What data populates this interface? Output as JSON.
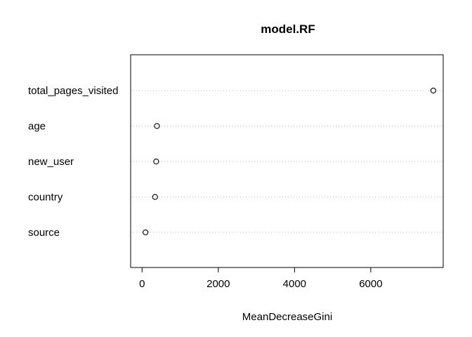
{
  "chart_data": {
    "type": "scatter",
    "subtype": "dotchart",
    "title": "model.RF",
    "xlabel": "MeanDecreaseGini",
    "ylabel": "",
    "categories": [
      "total_pages_visited",
      "age",
      "new_user",
      "country",
      "source"
    ],
    "values": [
      7640,
      390,
      370,
      340,
      90
    ],
    "xlim": [
      -300,
      7900
    ],
    "xticks": [
      0,
      2000,
      4000,
      6000
    ],
    "grid": "dotted-horizontal",
    "marker": "open-circle",
    "colors": {
      "point": "#000000",
      "grid": "#bebebe",
      "axis": "#000000"
    }
  }
}
